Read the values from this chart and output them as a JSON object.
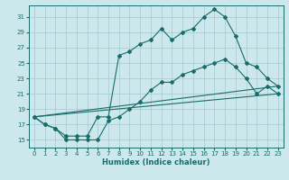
{
  "xlabel": "Humidex (Indice chaleur)",
  "bg_color": "#cce8ec",
  "grid_color": "#aacdd4",
  "line_color": "#1a6b6b",
  "xlim": [
    -0.5,
    23.5
  ],
  "ylim": [
    14.0,
    32.5
  ],
  "yticks": [
    15,
    17,
    19,
    21,
    23,
    25,
    27,
    29,
    31
  ],
  "xticks": [
    0,
    1,
    2,
    3,
    4,
    5,
    6,
    7,
    8,
    9,
    10,
    11,
    12,
    13,
    14,
    15,
    16,
    17,
    18,
    19,
    20,
    21,
    22,
    23
  ],
  "series": [
    {
      "x": [
        0,
        1,
        2,
        3,
        4,
        5,
        6,
        7,
        8,
        9,
        10,
        11,
        12,
        13,
        14,
        15,
        16,
        17,
        18,
        19,
        20,
        21,
        22,
        23
      ],
      "y": [
        18,
        17,
        16.5,
        15,
        15,
        15,
        15,
        17.5,
        18,
        19,
        20,
        21.5,
        22.5,
        22.5,
        23.5,
        24,
        24.5,
        25,
        25.5,
        24.5,
        23,
        21,
        22,
        21
      ],
      "marker": true
    },
    {
      "x": [
        0,
        1,
        2,
        3,
        4,
        5,
        6,
        7,
        8,
        9,
        10,
        11,
        12,
        13,
        14,
        15,
        16,
        17,
        18,
        19,
        20,
        21,
        22,
        23
      ],
      "y": [
        18,
        17,
        16.5,
        15.5,
        15.5,
        15.5,
        18,
        18,
        26,
        26.5,
        27.5,
        28,
        29.5,
        28,
        29,
        29.5,
        31,
        32,
        31,
        28.5,
        25,
        24.5,
        23,
        22
      ],
      "marker": true
    },
    {
      "x": [
        0,
        23
      ],
      "y": [
        18,
        21
      ],
      "marker": false
    },
    {
      "x": [
        0,
        23
      ],
      "y": [
        18,
        22
      ],
      "marker": false
    }
  ]
}
